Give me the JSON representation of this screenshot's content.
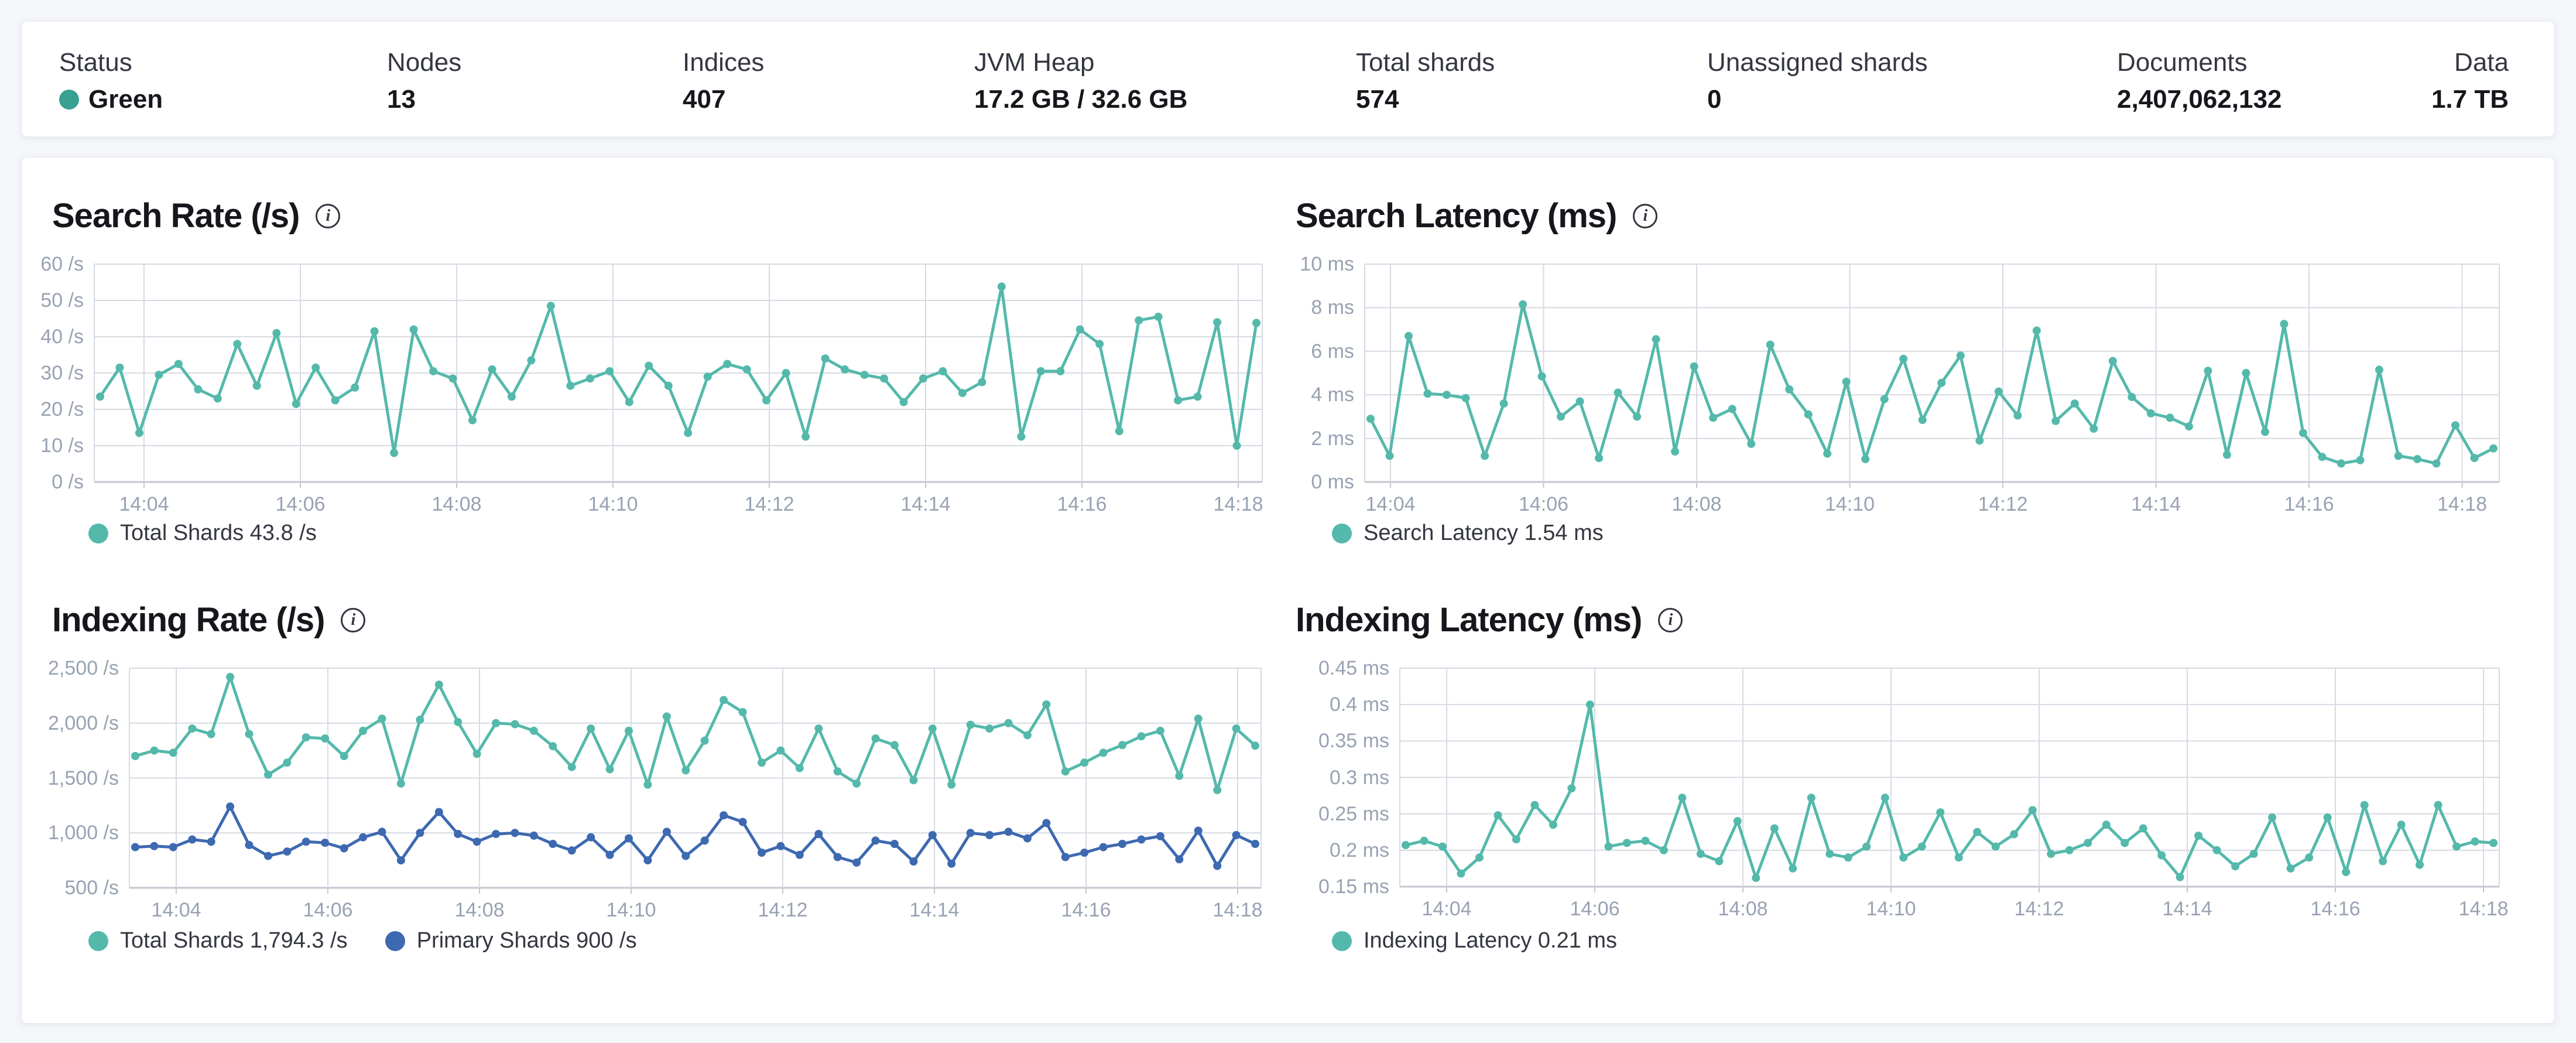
{
  "status_bar": {
    "metrics": [
      {
        "label": "Status",
        "value": "Green",
        "dot_color": "#3AA091"
      },
      {
        "label": "Nodes",
        "value": "13"
      },
      {
        "label": "Indices",
        "value": "407"
      },
      {
        "label": "JVM Heap",
        "value": "17.2 GB / 32.6 GB"
      },
      {
        "label": "Total shards",
        "value": "574"
      },
      {
        "label": "Unassigned shards",
        "value": "0"
      },
      {
        "label": "Documents",
        "value": "2,407,062,132"
      },
      {
        "label": "Data",
        "value": "1.7 TB"
      }
    ]
  },
  "icons": {
    "info": "i"
  },
  "colors": {
    "teal": "#54B9AB",
    "blue": "#3D69B0",
    "status_green": "#3AA091"
  },
  "chart_data": [
    {
      "type": "line",
      "title": "Search Rate (/s)",
      "xlabel": "",
      "ylabel": "/s",
      "x_ticks": [
        "14:04",
        "14:06",
        "14:08",
        "14:10",
        "14:12",
        "14:14",
        "14:16",
        "14:18"
      ],
      "y_ticks": [
        "60 /s",
        "50 /s",
        "40 /s",
        "30 /s",
        "20 /s",
        "10 /s",
        "0 /s"
      ],
      "ylim": [
        0,
        60
      ],
      "grid": true,
      "legend_position": "bottom",
      "series": [
        {
          "name": "Total Shards",
          "color": "#54B9AB",
          "values": [
            23.5,
            31.5,
            13.5,
            29.5,
            32.5,
            25.5,
            23,
            38,
            26.5,
            41,
            21.5,
            31.5,
            22.5,
            26,
            41.5,
            8,
            42,
            30.5,
            28.5,
            17,
            31,
            23.5,
            33.5,
            48.5,
            26.5,
            28.5,
            30.5,
            22,
            32,
            26.5,
            13.5,
            29,
            32.5,
            31,
            22.5,
            30,
            12.5,
            34,
            31,
            29.5,
            28.5,
            22,
            28.5,
            30.5,
            24.5,
            27.5,
            53.8,
            12.5,
            30.5,
            30.5,
            42,
            38,
            14,
            44.5,
            45.5,
            22.5,
            23.5,
            44,
            10,
            43.8
          ]
        }
      ],
      "legend": [
        {
          "label": "Total Shards 43.8 /s",
          "color": "#54B9AB"
        }
      ]
    },
    {
      "type": "line",
      "title": "Search Latency (ms)",
      "xlabel": "",
      "ylabel": "ms",
      "x_ticks": [
        "14:04",
        "14:06",
        "14:08",
        "14:10",
        "14:12",
        "14:14",
        "14:16",
        "14:18"
      ],
      "y_ticks": [
        "10 ms",
        "8 ms",
        "6 ms",
        "4 ms",
        "2 ms",
        "0 ms"
      ],
      "ylim": [
        0,
        10
      ],
      "grid": true,
      "legend_position": "bottom",
      "series": [
        {
          "name": "Search Latency",
          "color": "#54B9AB",
          "values": [
            2.9,
            1.2,
            6.7,
            4.05,
            4.0,
            3.85,
            1.2,
            3.6,
            8.15,
            4.85,
            3.0,
            3.7,
            1.1,
            4.1,
            3.0,
            6.55,
            1.4,
            5.3,
            2.95,
            3.35,
            1.75,
            6.3,
            4.25,
            3.1,
            1.3,
            4.6,
            1.05,
            3.8,
            5.65,
            2.85,
            4.55,
            5.8,
            1.9,
            4.15,
            3.05,
            6.95,
            2.8,
            3.6,
            2.45,
            5.55,
            3.9,
            3.15,
            2.95,
            2.55,
            5.1,
            1.25,
            5.0,
            2.3,
            7.25,
            2.25,
            1.15,
            0.85,
            1.0,
            5.15,
            1.2,
            1.05,
            0.85,
            2.6,
            1.1,
            1.54
          ]
        }
      ],
      "legend": [
        {
          "label": "Search Latency 1.54 ms",
          "color": "#54B9AB"
        }
      ]
    },
    {
      "type": "line",
      "title": "Indexing Rate (/s)",
      "xlabel": "",
      "ylabel": "/s",
      "x_ticks": [
        "14:04",
        "14:06",
        "14:08",
        "14:10",
        "14:12",
        "14:14",
        "14:16",
        "14:18"
      ],
      "y_ticks": [
        "2,500 /s",
        "2,000 /s",
        "1,500 /s",
        "1,000 /s",
        "500 /s"
      ],
      "ylim": [
        500,
        2500
      ],
      "grid": true,
      "legend_position": "bottom",
      "series": [
        {
          "name": "Total Shards",
          "color": "#54B9AB",
          "values": [
            1700,
            1750,
            1730,
            1950,
            1900,
            2420,
            1900,
            1530,
            1640,
            1870,
            1860,
            1700,
            1930,
            2040,
            1450,
            2030,
            2350,
            2010,
            1720,
            2000,
            1990,
            1930,
            1790,
            1600,
            1950,
            1580,
            1930,
            1440,
            2060,
            1570,
            1840,
            2210,
            2100,
            1640,
            1750,
            1590,
            1950,
            1560,
            1450,
            1860,
            1800,
            1480,
            1950,
            1440,
            1985,
            1950,
            2000,
            1890,
            2170,
            1560,
            1640,
            1730,
            1800,
            1880,
            1930,
            1520,
            2040,
            1390,
            1950,
            1794.3
          ]
        },
        {
          "name": "Primary Shards",
          "color": "#3D69B0",
          "values": [
            870,
            880,
            870,
            940,
            920,
            1240,
            890,
            790,
            830,
            920,
            910,
            860,
            960,
            1010,
            750,
            1000,
            1190,
            990,
            920,
            990,
            1000,
            975,
            900,
            840,
            960,
            800,
            950,
            750,
            1010,
            790,
            930,
            1160,
            1100,
            820,
            880,
            800,
            990,
            780,
            730,
            930,
            900,
            740,
            980,
            720,
            1000,
            980,
            1010,
            950,
            1090,
            780,
            820,
            870,
            900,
            940,
            970,
            760,
            1020,
            700,
            980,
            900
          ]
        }
      ],
      "legend": [
        {
          "label": "Total Shards 1,794.3 /s",
          "color": "#54B9AB"
        },
        {
          "label": "Primary Shards 900 /s",
          "color": "#3D69B0"
        }
      ]
    },
    {
      "type": "line",
      "title": "Indexing Latency (ms)",
      "xlabel": "",
      "ylabel": "ms",
      "x_ticks": [
        "14:04",
        "14:06",
        "14:08",
        "14:10",
        "14:12",
        "14:14",
        "14:16",
        "14:18"
      ],
      "y_ticks": [
        "0.45 ms",
        "0.4 ms",
        "0.35 ms",
        "0.3 ms",
        "0.25 ms",
        "0.2 ms",
        "0.15 ms"
      ],
      "ylim": [
        0.15,
        0.45
      ],
      "grid": true,
      "legend_position": "bottom",
      "series": [
        {
          "name": "Indexing Latency",
          "color": "#54B9AB",
          "values": [
            0.207,
            0.213,
            0.205,
            0.168,
            0.19,
            0.248,
            0.215,
            0.262,
            0.235,
            0.285,
            0.4,
            0.205,
            0.21,
            0.213,
            0.2,
            0.272,
            0.195,
            0.185,
            0.24,
            0.162,
            0.23,
            0.175,
            0.272,
            0.195,
            0.19,
            0.205,
            0.272,
            0.19,
            0.205,
            0.252,
            0.19,
            0.225,
            0.205,
            0.222,
            0.255,
            0.195,
            0.2,
            0.21,
            0.235,
            0.21,
            0.23,
            0.193,
            0.163,
            0.22,
            0.2,
            0.178,
            0.195,
            0.245,
            0.175,
            0.19,
            0.245,
            0.17,
            0.262,
            0.185,
            0.235,
            0.18,
            0.262,
            0.205,
            0.212,
            0.21
          ]
        }
      ],
      "legend": [
        {
          "label": "Indexing Latency 0.21 ms",
          "color": "#54B9AB"
        }
      ]
    }
  ]
}
